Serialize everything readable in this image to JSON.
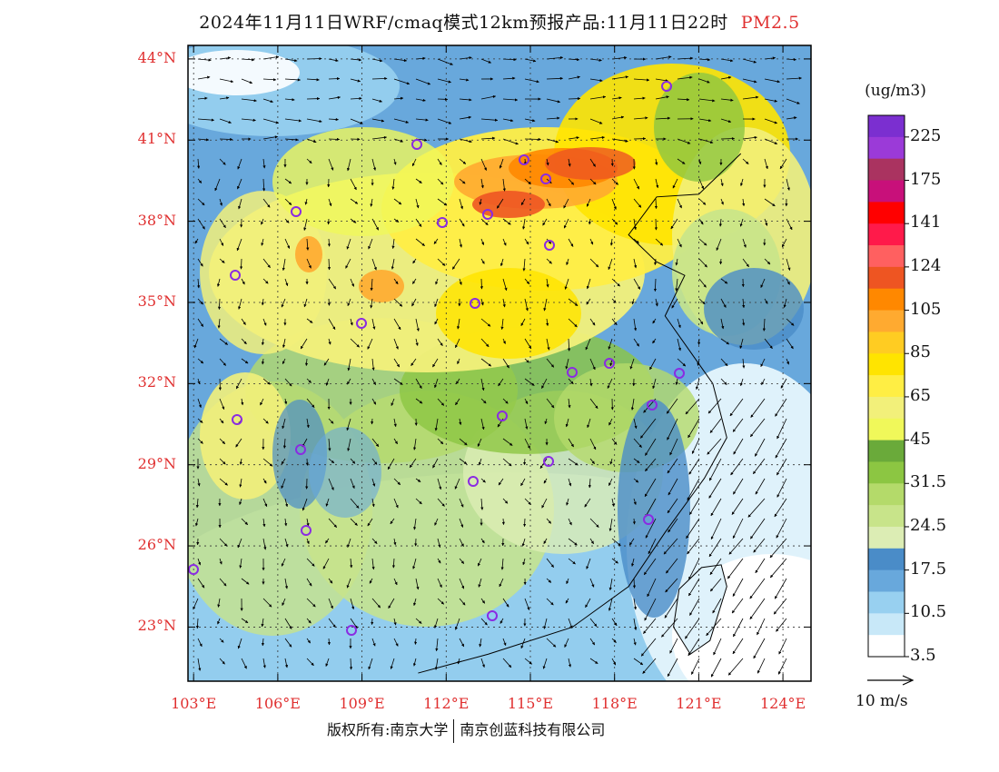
{
  "header": {
    "title": "2024年11月11日WRF/cmaq模式12km预报产品:11月11日22时",
    "species": "PM2.5"
  },
  "axes": {
    "lat_labels": [
      "44°N",
      "41°N",
      "38°N",
      "35°N",
      "32°N",
      "29°N",
      "26°N",
      "23°N"
    ],
    "lat_values": [
      44,
      41,
      38,
      35,
      32,
      29,
      26,
      23
    ],
    "lon_labels": [
      "103°E",
      "106°E",
      "109°E",
      "112°E",
      "115°E",
      "118°E",
      "121°E",
      "124°E"
    ],
    "lon_values": [
      103,
      106,
      109,
      112,
      115,
      118,
      121,
      124
    ],
    "lat_range": [
      21,
      44.5
    ],
    "lon_range": [
      102.8,
      125
    ]
  },
  "colorbar": {
    "unit": "(ug/m3)",
    "labels": [
      "225",
      "175",
      "141",
      "124",
      "105",
      "85",
      "65",
      "45",
      "31.5",
      "24.5",
      "17.5",
      "10.5",
      "3.5"
    ],
    "colors": [
      "#7b2fd0",
      "#9b3ad8",
      "#aa3360",
      "#c8107a",
      "#ff0000",
      "#ff1a4a",
      "#ff6060",
      "#ee5522",
      "#ff8800",
      "#ffaa30",
      "#ffcc22",
      "#ffe400",
      "#ffee44",
      "#f2f07a",
      "#f0f85a",
      "#6aaa3a",
      "#8cc642",
      "#b4da6a",
      "#c8e48a",
      "#dcedb4",
      "#4a8cc8",
      "#68a8dc",
      "#98d0f0",
      "#c8e8f8",
      "#ffffff"
    ]
  },
  "wind_reference": {
    "label": "10 m/s"
  },
  "footer": {
    "left": "版权所有:南京大学",
    "right": "南京创蓝科技有限公司"
  },
  "colors": {
    "axis_label": "#e03030",
    "station_marker": "#8a2be2"
  }
}
